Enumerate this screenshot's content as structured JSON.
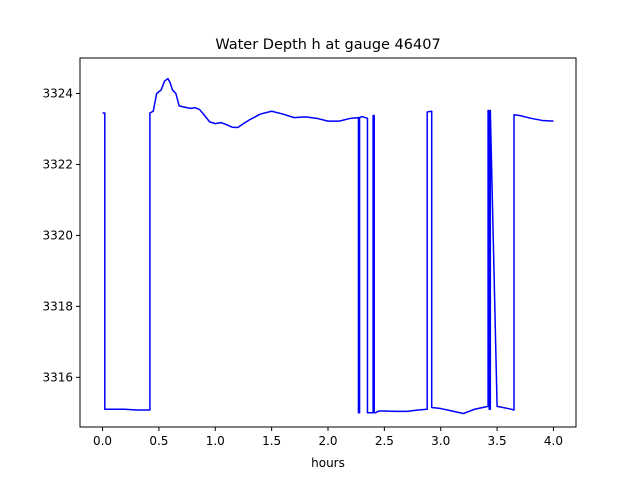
{
  "chart_data": {
    "type": "line",
    "title": "Water Depth h at gauge 46407",
    "xlabel": "hours",
    "ylabel": "",
    "xlim": [
      -0.2,
      4.2
    ],
    "ylim": [
      3314.6,
      3325.0
    ],
    "xticks": [
      0.0,
      0.5,
      1.0,
      1.5,
      2.0,
      2.5,
      3.0,
      3.5,
      4.0
    ],
    "xtick_labels": [
      "0.0",
      "0.5",
      "1.0",
      "1.5",
      "2.0",
      "2.5",
      "3.0",
      "3.5",
      "4.0"
    ],
    "yticks": [
      3316,
      3318,
      3320,
      3322,
      3324
    ],
    "ytick_labels": [
      "3316",
      "3318",
      "3320",
      "3322",
      "3324"
    ],
    "grid": false,
    "series": [
      {
        "color": "#0000ff",
        "x": [
          0.0,
          0.02,
          0.02,
          0.1,
          0.2,
          0.3,
          0.42,
          0.42,
          0.45,
          0.48,
          0.52,
          0.55,
          0.58,
          0.6,
          0.62,
          0.65,
          0.68,
          0.72,
          0.78,
          0.82,
          0.86,
          0.9,
          0.95,
          1.0,
          1.05,
          1.1,
          1.15,
          1.2,
          1.25,
          1.3,
          1.4,
          1.5,
          1.6,
          1.7,
          1.8,
          1.9,
          2.0,
          2.1,
          2.2,
          2.27,
          2.27,
          2.28,
          2.28,
          2.3,
          2.35,
          2.35,
          2.38,
          2.4,
          2.4,
          2.41,
          2.41,
          2.42,
          2.45,
          2.5,
          2.6,
          2.7,
          2.8,
          2.88,
          2.88,
          2.92,
          2.92,
          3.0,
          3.1,
          3.2,
          3.3,
          3.42,
          3.42,
          3.43,
          3.43,
          3.44,
          3.44,
          3.5,
          3.6,
          3.65,
          3.65,
          3.7,
          3.8,
          3.9,
          4.0
        ],
        "y": [
          3323.45,
          3323.45,
          3315.1,
          3315.1,
          3315.1,
          3315.08,
          3315.08,
          3323.45,
          3323.5,
          3324.0,
          3324.1,
          3324.35,
          3324.42,
          3324.3,
          3324.1,
          3324.0,
          3323.65,
          3323.62,
          3323.58,
          3323.6,
          3323.55,
          3323.4,
          3323.2,
          3323.15,
          3323.18,
          3323.12,
          3323.05,
          3323.04,
          3323.15,
          3323.25,
          3323.42,
          3323.5,
          3323.42,
          3323.32,
          3323.34,
          3323.3,
          3323.22,
          3323.22,
          3323.3,
          3323.32,
          3315.0,
          3315.0,
          3323.32,
          3323.35,
          3323.3,
          3315.0,
          3315.0,
          3315.0,
          3323.38,
          3323.38,
          3315.0,
          3315.0,
          3315.05,
          3315.05,
          3315.04,
          3315.04,
          3315.08,
          3315.1,
          3323.48,
          3323.5,
          3315.15,
          3315.12,
          3315.05,
          3314.98,
          3315.1,
          3315.18,
          3323.52,
          3323.52,
          3315.1,
          3315.1,
          3323.52,
          3315.18,
          3315.12,
          3315.08,
          3323.4,
          3323.38,
          3323.3,
          3323.24,
          3323.22
        ]
      }
    ]
  }
}
